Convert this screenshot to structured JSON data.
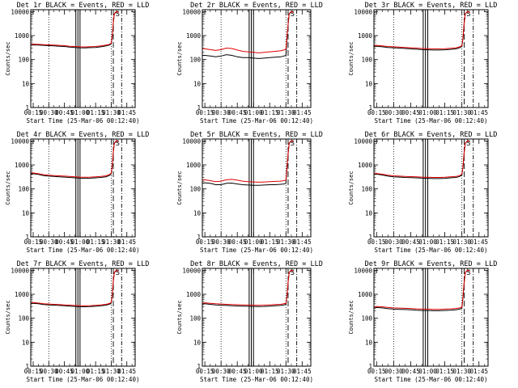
{
  "chart_data": {
    "type": "line",
    "yscale": "log",
    "ylabel": "Counts/sec",
    "xlabel": "Start Time (25-Mar-06 00:12:40)",
    "xlim": [
      12.67,
      113
    ],
    "ylim": [
      1,
      12000
    ],
    "x_ticks": [
      {
        "value": 15,
        "label": "00:15"
      },
      {
        "value": 30,
        "label": "00:30"
      },
      {
        "value": 45,
        "label": "00:45"
      },
      {
        "value": 60,
        "label": "01:00"
      },
      {
        "value": 75,
        "label": "01:15"
      },
      {
        "value": 90,
        "label": "01:30"
      },
      {
        "value": 105,
        "label": "01:45"
      }
    ],
    "y_ticks": [
      {
        "value": 1,
        "label": "1"
      },
      {
        "value": 10,
        "label": "10"
      },
      {
        "value": 100,
        "label": "100"
      },
      {
        "value": 1000,
        "label": "1000"
      },
      {
        "value": 10000,
        "label": "10000"
      }
    ],
    "markers": {
      "dotted": [
        30,
        90
      ],
      "solid": [
        56,
        58,
        60
      ],
      "dashed": [
        92,
        100
      ],
      "S_label": {
        "text": "S",
        "x": 93
      }
    },
    "x": [
      13,
      15,
      20,
      25,
      30,
      35,
      40,
      45,
      50,
      55,
      60,
      65,
      70,
      75,
      80,
      85,
      88,
      90,
      91,
      92,
      93,
      95,
      97
    ],
    "panels": [
      {
        "title": "Det 1r BLACK = Events, RED = LLD",
        "series": [
          {
            "name": "Events",
            "color": "#000000",
            "values": [
              400,
              410,
              400,
              390,
              380,
              370,
              360,
              350,
              330,
              320,
              310,
              305,
              315,
              320,
              340,
              370,
              400,
              450,
              900,
              3500,
              8000,
              10000,
              9000
            ]
          },
          {
            "name": "LLD",
            "color": "#e00000",
            "values": [
              430,
              440,
              430,
              420,
              410,
              400,
              390,
              380,
              360,
              350,
              340,
              335,
              345,
              350,
              370,
              400,
              430,
              480,
              950,
              3600,
              8200,
              10200,
              9200
            ]
          }
        ]
      },
      {
        "title": "Det 2r BLACK = Events, RED = LLD",
        "series": [
          {
            "name": "Events",
            "color": "#000000",
            "values": [
              150,
              150,
              140,
              130,
              140,
              160,
              150,
              130,
              120,
              120,
              115,
              110,
              115,
              120,
              125,
              130,
              140,
              150,
              800,
              3000,
              8000,
              10000,
              9000
            ]
          },
          {
            "name": "LLD",
            "color": "#e00000",
            "values": [
              290,
              280,
              260,
              240,
              260,
              300,
              290,
              250,
              220,
              210,
              200,
              190,
              200,
              210,
              220,
              230,
              250,
              270,
              900,
              3200,
              8200,
              10200,
              9200
            ]
          }
        ]
      },
      {
        "title": "Det 3r BLACK = Events, RED = LLD",
        "series": [
          {
            "name": "Events",
            "color": "#000000",
            "values": [
              350,
              360,
              340,
              320,
              310,
              300,
              290,
              280,
              270,
              260,
              255,
              250,
              250,
              255,
              265,
              280,
              310,
              350,
              800,
              3300,
              8000,
              10000,
              9000
            ]
          },
          {
            "name": "LLD",
            "color": "#e00000",
            "values": [
              380,
              390,
              370,
              350,
              340,
              330,
              320,
              310,
              300,
              290,
              285,
              280,
              280,
              285,
              295,
              310,
              340,
              380,
              850,
              3400,
              8200,
              10200,
              9200
            ]
          }
        ]
      },
      {
        "title": "Det 4r BLACK = Events, RED = LLD",
        "series": [
          {
            "name": "Events",
            "color": "#000000",
            "values": [
              420,
              430,
              400,
              360,
              340,
              330,
              320,
              310,
              300,
              290,
              280,
              275,
              280,
              290,
              300,
              320,
              360,
              420,
              900,
              3500,
              8000,
              10000,
              9000
            ]
          },
          {
            "name": "LLD",
            "color": "#e00000",
            "values": [
              450,
              460,
              430,
              390,
              370,
              360,
              350,
              340,
              330,
              320,
              310,
              305,
              310,
              320,
              330,
              350,
              390,
              450,
              950,
              3600,
              8200,
              10200,
              9200
            ]
          }
        ]
      },
      {
        "title": "Det 5r BLACK = Events, RED = LLD",
        "series": [
          {
            "name": "Events",
            "color": "#000000",
            "values": [
              170,
              180,
              170,
              150,
              150,
              170,
              175,
              160,
              150,
              145,
              140,
              140,
              145,
              150,
              150,
              155,
              160,
              170,
              800,
              3000,
              8000,
              10000,
              9000
            ]
          },
          {
            "name": "LLD",
            "color": "#e00000",
            "values": [
              230,
              240,
              220,
              200,
              210,
              240,
              250,
              230,
              210,
              200,
              195,
              190,
              195,
              200,
              205,
              210,
              220,
              230,
              850,
              3200,
              8200,
              10200,
              9200
            ]
          }
        ]
      },
      {
        "title": "Det 6r BLACK = Events, RED = LLD",
        "series": [
          {
            "name": "Events",
            "color": "#000000",
            "values": [
              400,
              410,
              380,
              340,
              320,
              310,
              300,
              295,
              290,
              280,
              275,
              270,
              270,
              275,
              290,
              300,
              330,
              380,
              850,
              3300,
              8000,
              10000,
              9000
            ]
          },
          {
            "name": "LLD",
            "color": "#e00000",
            "values": [
              430,
              440,
              410,
              370,
              350,
              340,
              330,
              325,
              320,
              310,
              305,
              300,
              300,
              305,
              320,
              330,
              360,
              410,
              900,
              3400,
              8200,
              10200,
              9200
            ]
          }
        ]
      },
      {
        "title": "Det 7r BLACK = Events, RED = LLD",
        "series": [
          {
            "name": "Events",
            "color": "#000000",
            "values": [
              400,
              420,
              400,
              370,
              360,
              350,
              340,
              330,
              320,
              310,
              300,
              300,
              305,
              315,
              330,
              350,
              380,
              420,
              900,
              3500,
              8000,
              10000,
              9000
            ]
          },
          {
            "name": "LLD",
            "color": "#e00000",
            "values": [
              430,
              450,
              430,
              400,
              390,
              380,
              370,
              360,
              350,
              340,
              330,
              330,
              335,
              345,
              360,
              380,
              410,
              450,
              950,
              3600,
              8200,
              10200,
              9200
            ]
          }
        ]
      },
      {
        "title": "Det 8r BLACK = Events, RED = LLD",
        "series": [
          {
            "name": "Events",
            "color": "#000000",
            "values": [
              380,
              400,
              380,
              360,
              350,
              340,
              330,
              325,
              320,
              315,
              310,
              305,
              310,
              320,
              330,
              340,
              360,
              380,
              850,
              3300,
              8000,
              10000,
              9000
            ]
          },
          {
            "name": "LLD",
            "color": "#e00000",
            "values": [
              420,
              440,
              420,
              400,
              390,
              380,
              370,
              365,
              360,
              355,
              350,
              345,
              350,
              360,
              370,
              380,
              400,
              420,
              900,
              3400,
              8200,
              10200,
              9200
            ]
          }
        ]
      },
      {
        "title": "Det 9r BLACK = Events, RED = LLD",
        "series": [
          {
            "name": "Events",
            "color": "#000000",
            "values": [
              260,
              280,
              270,
              250,
              240,
              235,
              230,
              225,
              215,
              210,
              210,
              205,
              205,
              210,
              215,
              225,
              240,
              260,
              800,
              3000,
              8000,
              10000,
              9000
            ]
          },
          {
            "name": "LLD",
            "color": "#e00000",
            "values": [
              290,
              310,
              300,
              280,
              270,
              265,
              260,
              255,
              245,
              240,
              240,
              235,
              235,
              240,
              245,
              255,
              270,
              290,
              850,
              3200,
              8200,
              10200,
              9200
            ]
          }
        ]
      }
    ]
  }
}
